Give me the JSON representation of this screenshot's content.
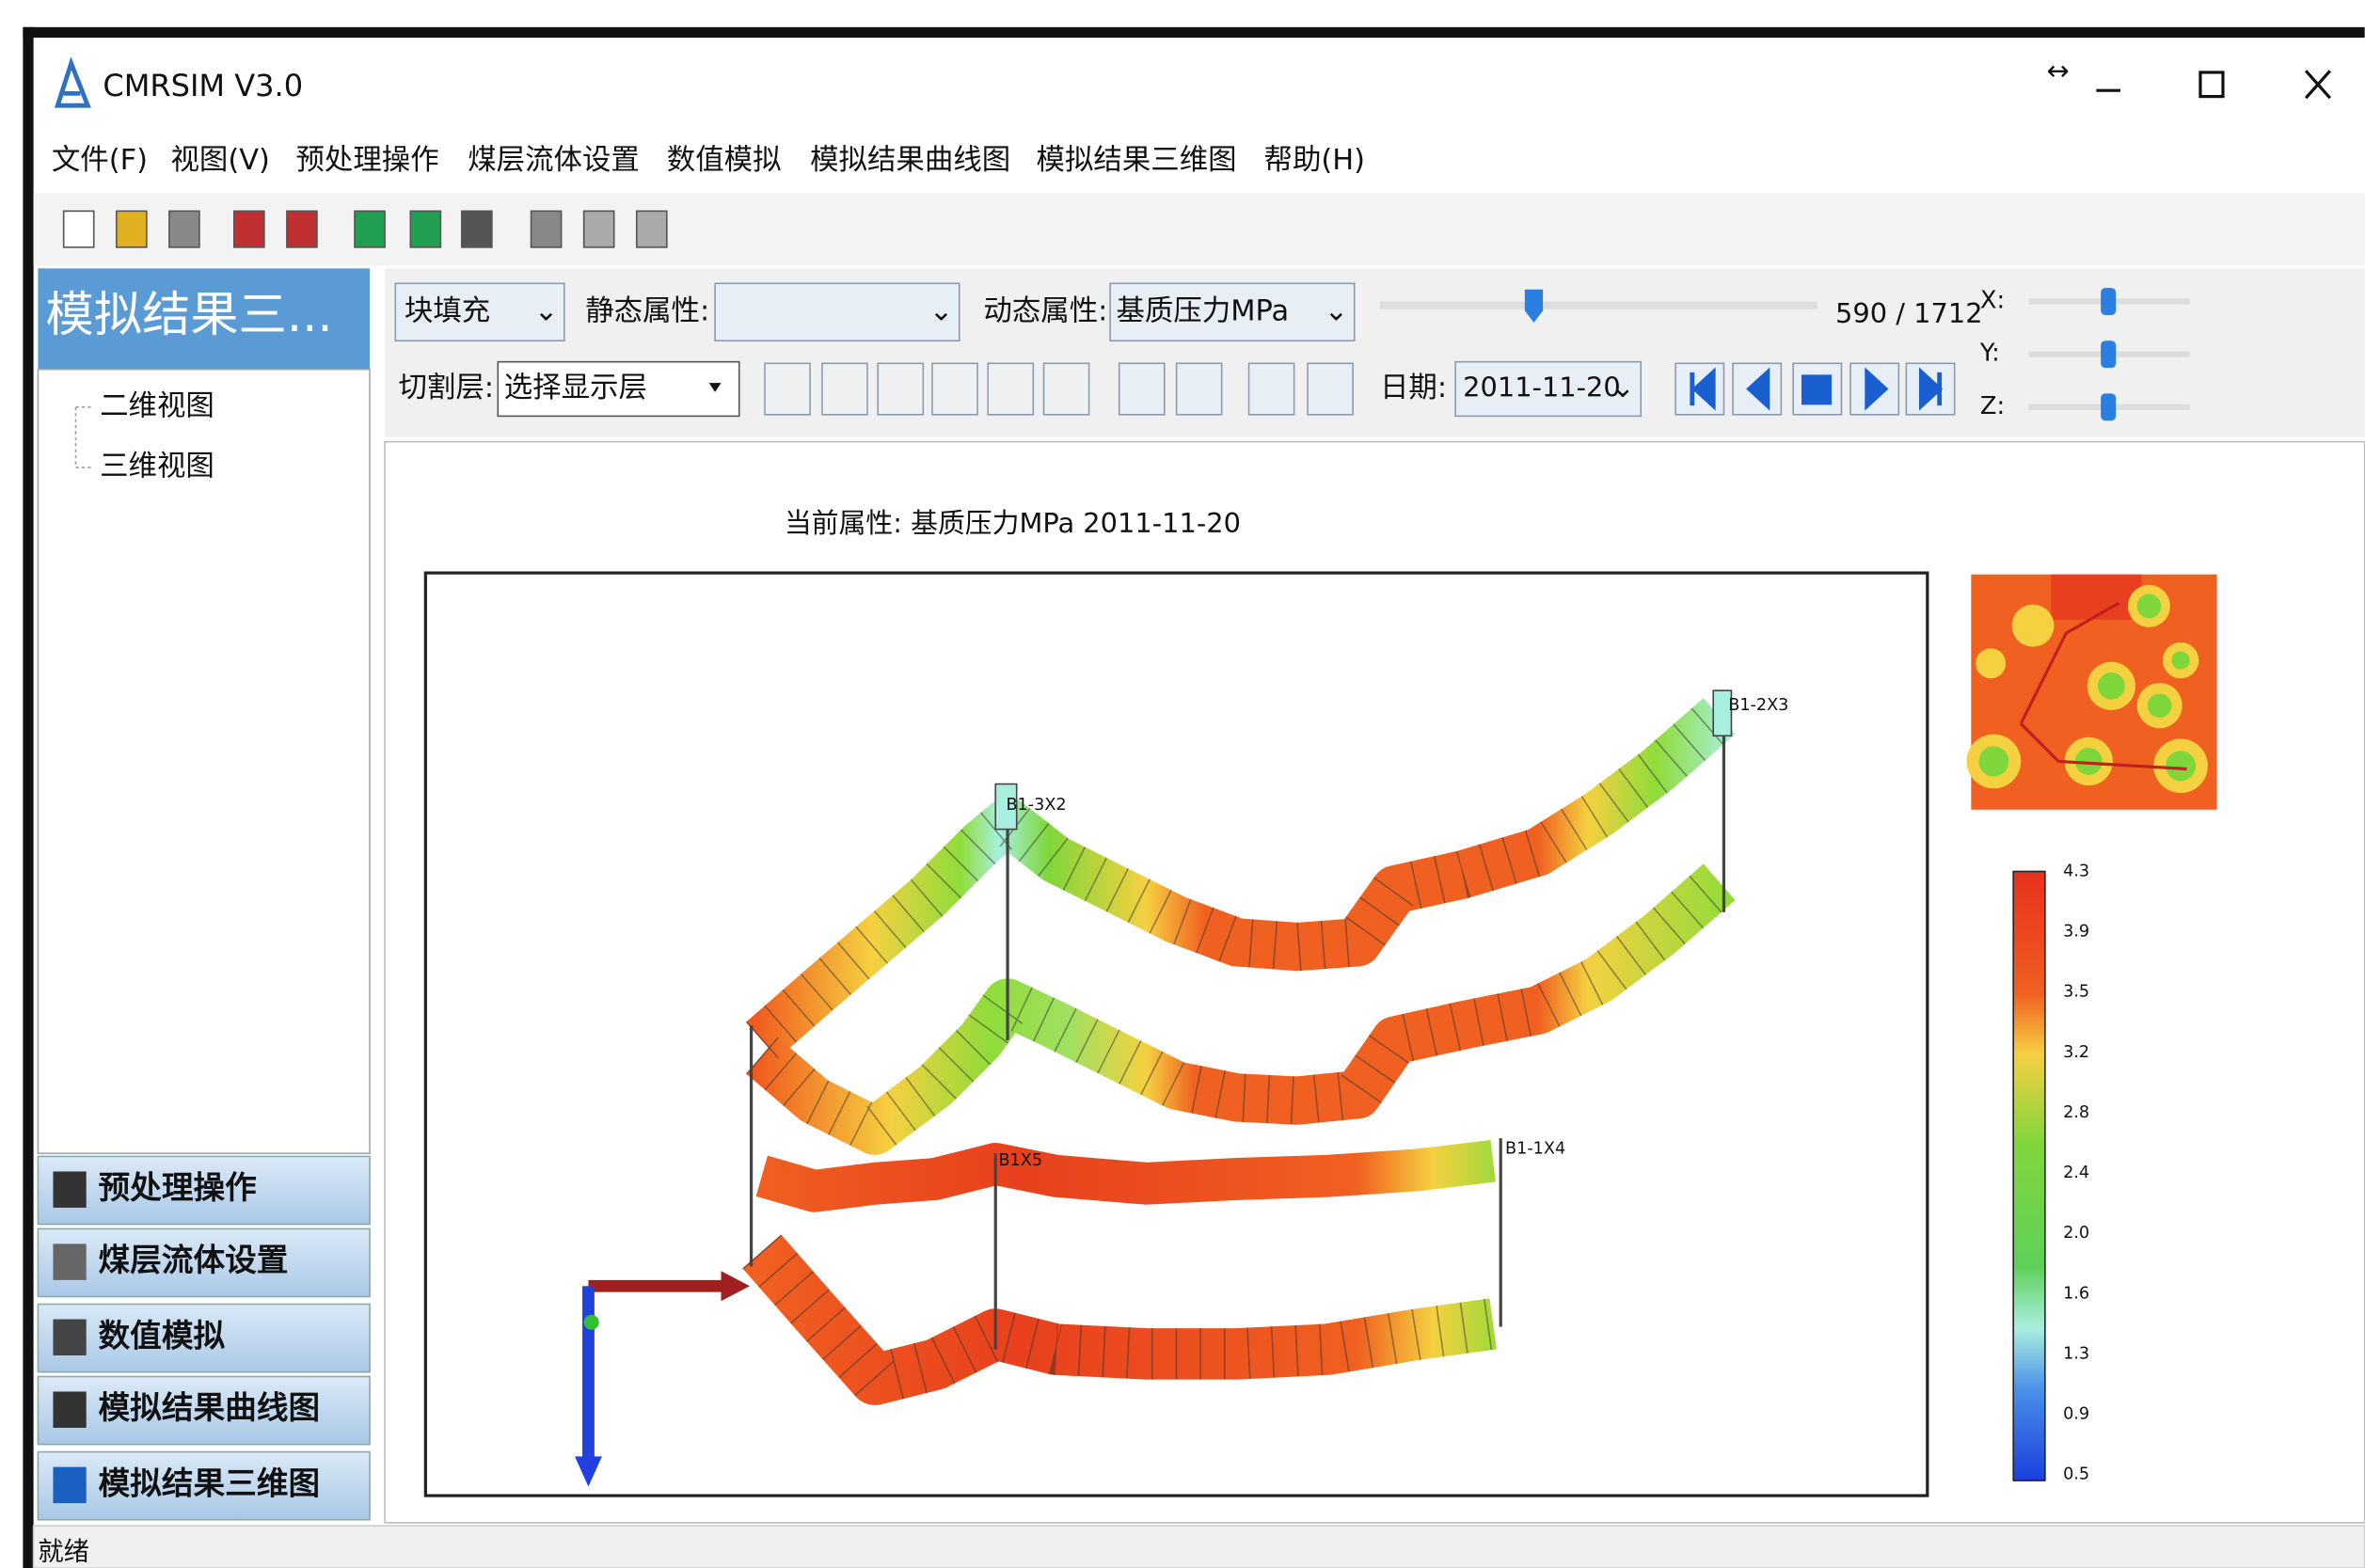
{
  "window": {
    "title": "CMRSIM V3.0"
  },
  "menu": [
    "文件(F)",
    "视图(V)",
    "预处理操作",
    "煤层流体设置",
    "数值模拟",
    "模拟结果曲线图",
    "模拟结果三维图",
    "帮助(H)"
  ],
  "sidebar": {
    "header": "模拟结果三...",
    "tree": [
      "二维视图",
      "三维视图"
    ],
    "buttons": [
      "预处理操作",
      "煤层流体设置",
      "数值模拟",
      "模拟结果曲线图",
      "模拟结果三维图"
    ]
  },
  "controls": {
    "fill_mode": "块填充",
    "static_label": "静态属性:",
    "dynamic_label": "动态属性:",
    "dynamic_value": "基质压力MPa",
    "step": "590 / 1712",
    "x_label": "X:",
    "y_label": "Y:",
    "z_label": "Z:",
    "cut_label": "切割层:",
    "cut_value": "选择显示层",
    "date_label": "日期:",
    "date_value": "2011-11-20"
  },
  "plot": {
    "title": "当前属性: 基质压力MPa 2011-11-20",
    "wells": [
      "B1-2X3",
      "B1-3X2",
      "B1X5",
      "B1-1X4"
    ],
    "colorbar_ticks": [
      "4.3",
      "3.9",
      "3.5",
      "3.2",
      "2.8",
      "2.4",
      "2.0",
      "1.6",
      "1.3",
      "0.9",
      "0.5"
    ]
  },
  "status": "就绪"
}
